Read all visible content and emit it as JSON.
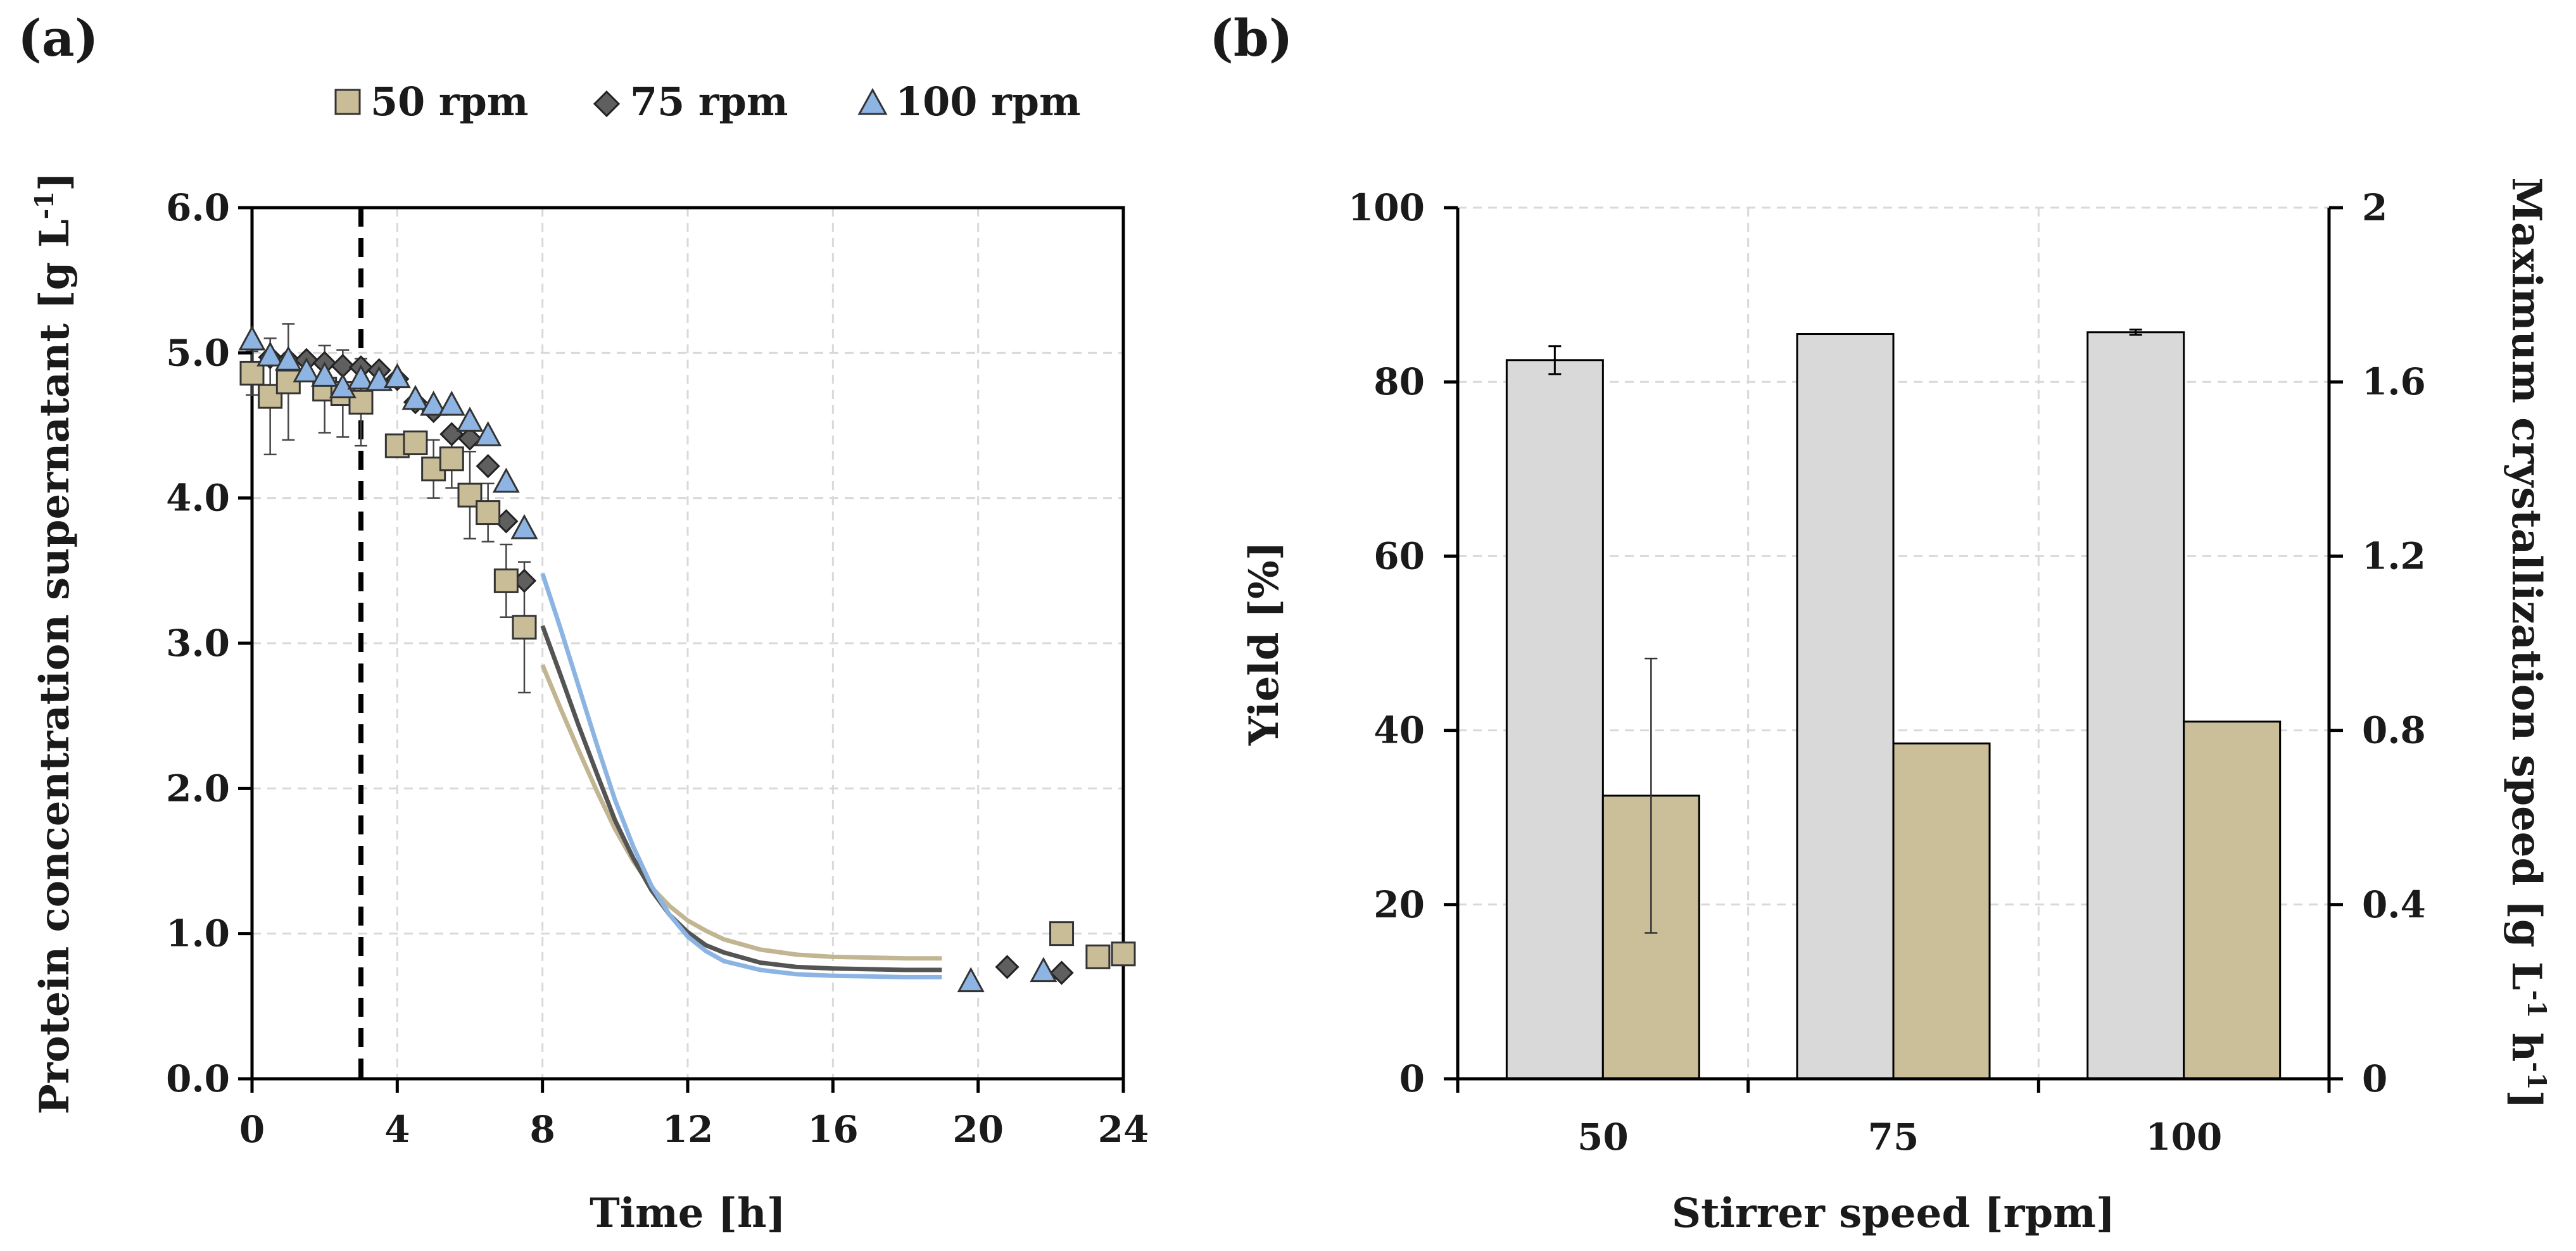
{
  "panel_a": {
    "label": "(a)"
  },
  "panel_b": {
    "label": "(b)"
  },
  "chart_data": [
    {
      "type": "scatter",
      "panel": "(a)",
      "title": "",
      "xlabel": "Time [h]",
      "ylabel": "Protein concentration supernatant [g L",
      "ylabel_sup": "-1",
      "ylabel_end": "]",
      "xlim": [
        0,
        24
      ],
      "ylim": [
        0,
        6
      ],
      "xticks": [
        0,
        4,
        8,
        12,
        16,
        20,
        24
      ],
      "yticks": [
        0,
        1,
        2,
        3,
        4,
        5,
        6
      ],
      "xtick_labels": [
        "0",
        "4",
        "8",
        "12",
        "16",
        "20",
        "24"
      ],
      "ytick_labels": [
        "0.0",
        "1.0",
        "2.0",
        "3.0",
        "4.0",
        "5.0",
        "6.0"
      ],
      "grid": true,
      "vline_x": 3,
      "legend_position": "top",
      "series": [
        {
          "name": "50 rpm",
          "marker": "square",
          "color": "#c9bd97",
          "line_color": "#c2b592",
          "x": [
            0,
            0.5,
            1,
            2,
            2.5,
            3,
            4,
            4.5,
            5,
            5.5,
            6,
            6.5,
            7,
            7.5,
            22.3,
            23.3,
            24
          ],
          "y": [
            4.86,
            4.7,
            4.8,
            4.75,
            4.72,
            4.66,
            4.36,
            4.38,
            4.2,
            4.27,
            4.02,
            3.9,
            3.43,
            3.11,
            1.0,
            0.84,
            0.86
          ],
          "err": [
            0.15,
            0.4,
            0.4,
            0.3,
            0.3,
            0.3,
            0,
            0,
            0.2,
            0.2,
            0.3,
            0.2,
            0.25,
            0.45,
            0,
            0,
            0
          ],
          "fit_x": [
            8,
            8.5,
            9,
            9.5,
            10,
            10.5,
            11,
            11.5,
            12,
            12.5,
            13,
            14,
            15,
            16,
            17,
            18,
            19
          ],
          "fit_y": [
            2.85,
            2.55,
            2.26,
            1.98,
            1.72,
            1.5,
            1.32,
            1.19,
            1.09,
            1.02,
            0.96,
            0.89,
            0.855,
            0.84,
            0.835,
            0.83,
            0.83
          ]
        },
        {
          "name": "75 rpm",
          "marker": "diamond",
          "color": "#5f5f5f",
          "line_color": "#545454",
          "x": [
            0.5,
            1,
            1.5,
            2,
            2.5,
            3,
            3.5,
            4,
            4.5,
            5,
            5.5,
            6,
            6.5,
            7,
            7.5,
            20.8,
            22.3
          ],
          "y": [
            4.97,
            4.95,
            4.95,
            4.93,
            4.91,
            4.9,
            4.88,
            4.82,
            4.66,
            4.6,
            4.44,
            4.41,
            4.22,
            3.84,
            3.43,
            0.77,
            0.73
          ],
          "fit_x": [
            8,
            8.5,
            9,
            9.5,
            10,
            10.5,
            11,
            11.5,
            12,
            12.5,
            13,
            14,
            15,
            16,
            17,
            18,
            19
          ],
          "fit_y": [
            3.12,
            2.78,
            2.43,
            2.1,
            1.78,
            1.52,
            1.3,
            1.13,
            1.01,
            0.92,
            0.87,
            0.8,
            0.77,
            0.76,
            0.755,
            0.75,
            0.75
          ]
        },
        {
          "name": "100 rpm",
          "marker": "triangle",
          "color": "#8db4e2",
          "line_color": "#8cb4e2",
          "x": [
            0,
            0.5,
            1,
            1.5,
            2,
            2.5,
            3,
            3.5,
            4,
            4.5,
            5,
            5.5,
            6,
            6.5,
            7,
            7.5,
            19.8,
            21.8
          ],
          "y": [
            5.08,
            4.97,
            4.94,
            4.86,
            4.83,
            4.75,
            4.81,
            4.8,
            4.82,
            4.67,
            4.63,
            4.63,
            4.52,
            4.42,
            4.1,
            3.78,
            0.66,
            0.73
          ],
          "fit_x": [
            8,
            8.5,
            9,
            9.5,
            10,
            10.5,
            11,
            11.5,
            12,
            12.5,
            13,
            14,
            15,
            16,
            17,
            18,
            19
          ],
          "fit_y": [
            3.48,
            3.1,
            2.7,
            2.3,
            1.92,
            1.6,
            1.33,
            1.13,
            0.98,
            0.88,
            0.81,
            0.75,
            0.72,
            0.71,
            0.705,
            0.7,
            0.7
          ]
        }
      ]
    },
    {
      "type": "bar",
      "panel": "(b)",
      "title": "",
      "xlabel": "Stirrer speed [rpm]",
      "ylabel": "Yield [%]",
      "y2label": "Maximum crystallization speed [g L",
      "y2label_sup1": "-1",
      "y2label_mid": " h",
      "y2label_sup2": "-1",
      "y2label_end": "]",
      "categories": [
        "50",
        "75",
        "100"
      ],
      "ylim": [
        0,
        100
      ],
      "y2lim": [
        0,
        2
      ],
      "yticks": [
        0,
        20,
        40,
        60,
        80,
        100
      ],
      "ytick_labels": [
        "0",
        "20",
        "40",
        "60",
        "80",
        "100"
      ],
      "y2ticks": [
        0,
        0.4,
        0.8,
        1.2,
        1.6,
        2
      ],
      "y2tick_labels": [
        "0",
        "0.4",
        "0.8",
        "1.2",
        "1.6",
        "2"
      ],
      "grid": true,
      "series": [
        {
          "name": "Yield",
          "axis": "left",
          "color": "#d9d9d9",
          "values": [
            82.5,
            85.5,
            85.7
          ],
          "err": [
            1.6,
            0,
            0.3
          ]
        },
        {
          "name": "Maximum crystallization speed",
          "axis": "right",
          "color": "#cbbf99",
          "values": [
            0.65,
            0.77,
            0.82
          ],
          "err": [
            0.315,
            0,
            0
          ]
        }
      ]
    }
  ]
}
